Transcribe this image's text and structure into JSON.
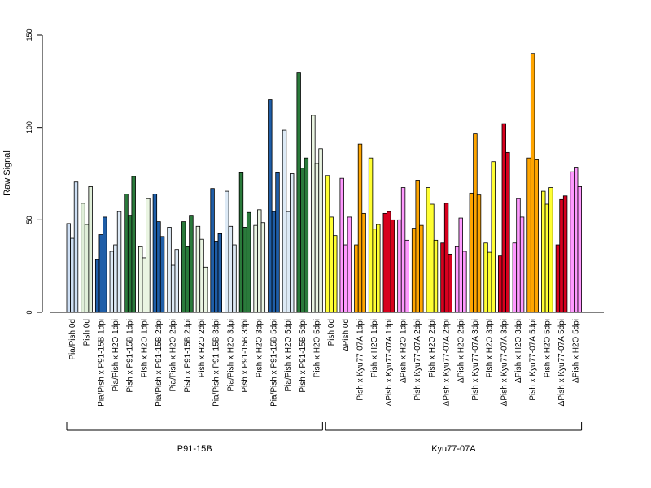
{
  "chart_data": {
    "type": "bar",
    "title": "",
    "xlabel": "",
    "ylabel": "Raw Signal",
    "ylim": [
      0,
      150
    ],
    "yticks": [
      0,
      50,
      100,
      150
    ],
    "grid": false,
    "legend": "none",
    "groups": [
      {
        "label": "Pia/Pish 0d",
        "values": [
          48,
          40,
          70.5
        ]
      },
      {
        "label": "Pish 0d",
        "values": [
          59,
          47.5,
          68
        ]
      },
      {
        "label": "Pia/Pish x P91-15B 1dpi",
        "values": [
          28.5,
          42,
          51.5
        ]
      },
      {
        "label": "Pia/Pish x H2O 1dpi",
        "values": [
          33,
          36.5,
          54.5
        ]
      },
      {
        "label": "Pish x P91-15B 1dpi",
        "values": [
          64,
          52.5,
          73.5
        ]
      },
      {
        "label": "Pish x H2O 1dpi",
        "values": [
          35.5,
          29.5,
          61.5
        ]
      },
      {
        "label": "Pia/Pish x P91-15B 2dpi",
        "values": [
          64,
          49,
          41
        ]
      },
      {
        "label": "Pia/Pish x H2O 2dpi",
        "values": [
          46,
          25.5,
          34
        ]
      },
      {
        "label": "Pish x P91-15B 2dpi",
        "values": [
          49,
          35.5,
          52.5
        ]
      },
      {
        "label": "Pish x H2O 2dpi",
        "values": [
          46.5,
          39.5,
          24.5
        ]
      },
      {
        "label": "Pia/Pish x P91-15B 3dpi",
        "values": [
          67,
          38.5,
          42.5
        ]
      },
      {
        "label": "Pia/Pish x H2O 3dpi",
        "values": [
          65.5,
          46.5,
          36.5
        ]
      },
      {
        "label": "Pish x P91-15B 3dpi",
        "values": [
          75.5,
          46,
          54
        ]
      },
      {
        "label": "Pish x H2O 3dpi",
        "values": [
          47,
          55.5,
          48.5
        ]
      },
      {
        "label": "Pia/Pish x P91-15B 5dpi",
        "values": [
          115,
          54.5,
          75.5
        ]
      },
      {
        "label": "Pia/Pish x H2O 5dpi",
        "values": [
          98.5,
          54.5,
          75
        ]
      },
      {
        "label": "Pish x P91-15B 5dpi",
        "values": [
          129.5,
          78,
          83.5
        ]
      },
      {
        "label": "Pish x H2O 5dpi",
        "values": [
          106.5,
          80.5,
          88.5
        ]
      },
      {
        "label": "Pish 0d",
        "values": [
          74,
          51.5,
          41.5
        ]
      },
      {
        "label": "ΔPish 0d",
        "values": [
          72.5,
          36.5,
          51.5
        ]
      },
      {
        "label": "Pish x Kyu77-07A 1dpi",
        "values": [
          36.5,
          91,
          53.5
        ]
      },
      {
        "label": "Pish x H2O 1dpi",
        "values": [
          83.5,
          45,
          47.5
        ]
      },
      {
        "label": "ΔPish x Kyu77-07A 1dpi",
        "values": [
          53.5,
          54.5,
          50
        ]
      },
      {
        "label": "ΔPish x H2O 1dpi",
        "values": [
          50,
          67.5,
          39
        ]
      },
      {
        "label": "Pish x Kyu77-07A 2dpi",
        "values": [
          45.5,
          71.5,
          47
        ]
      },
      {
        "label": "Pish x H2O 2dpi",
        "values": [
          67.5,
          58.5,
          39
        ]
      },
      {
        "label": "ΔPish x Kyu77-07A 2dpi",
        "values": [
          37.5,
          59,
          31.5
        ]
      },
      {
        "label": "ΔPish x H2O 2dpi",
        "values": [
          35.5,
          51,
          33
        ]
      },
      {
        "label": "Pish x Kyu77-07A 3dpi",
        "values": [
          64.5,
          96.5,
          63.5
        ]
      },
      {
        "label": "Pish x H2O 3dpi",
        "values": [
          37.5,
          32.5,
          81.5
        ]
      },
      {
        "label": "ΔPish x Kyu77-07A 3dpi",
        "values": [
          30.5,
          102,
          86.5
        ]
      },
      {
        "label": "ΔPish x H2O 3dpi",
        "values": [
          37.5,
          61.5,
          51.5
        ]
      },
      {
        "label": "Pish x Kyu77-07A 5dpi",
        "values": [
          83.5,
          140,
          82.5
        ]
      },
      {
        "label": "Pish x H2O 5dpi",
        "values": [
          65.5,
          58.5,
          67.5
        ]
      },
      {
        "label": "ΔPish x Kyu77-07A 5dpi",
        "values": [
          36.5,
          61,
          63
        ]
      },
      {
        "label": "ΔPish x H2O 5dpi",
        "values": [
          76,
          78.5,
          68
        ]
      }
    ],
    "colors": [
      "#cfe0f5",
      "#e0efd9",
      "#1f5ea8",
      "#ddeaf6",
      "#2a7a3b",
      "#eaf5e2",
      "#1f5ea8",
      "#ddeaf6",
      "#2a7a3b",
      "#eaf5e2",
      "#1f5ea8",
      "#ddeaf6",
      "#2a7a3b",
      "#eaf5e2",
      "#1f5ea8",
      "#ddeaf6",
      "#2a7a3b",
      "#eaf5e2",
      "#ffff33",
      "#ff99ff",
      "#ffa500",
      "#ffff33",
      "#d7001e",
      "#ff99ff",
      "#ffa500",
      "#ffff33",
      "#d7001e",
      "#ff99ff",
      "#ffa500",
      "#ffff33",
      "#d7001e",
      "#ff99ff",
      "#ffa500",
      "#ffff33",
      "#d7001e",
      "#ff99ff"
    ],
    "bar_stroke": "#000000",
    "sections": [
      {
        "label": "P91-15B",
        "from": 0,
        "to": 17
      },
      {
        "label": "Kyu77-07A",
        "from": 18,
        "to": 35
      }
    ]
  }
}
